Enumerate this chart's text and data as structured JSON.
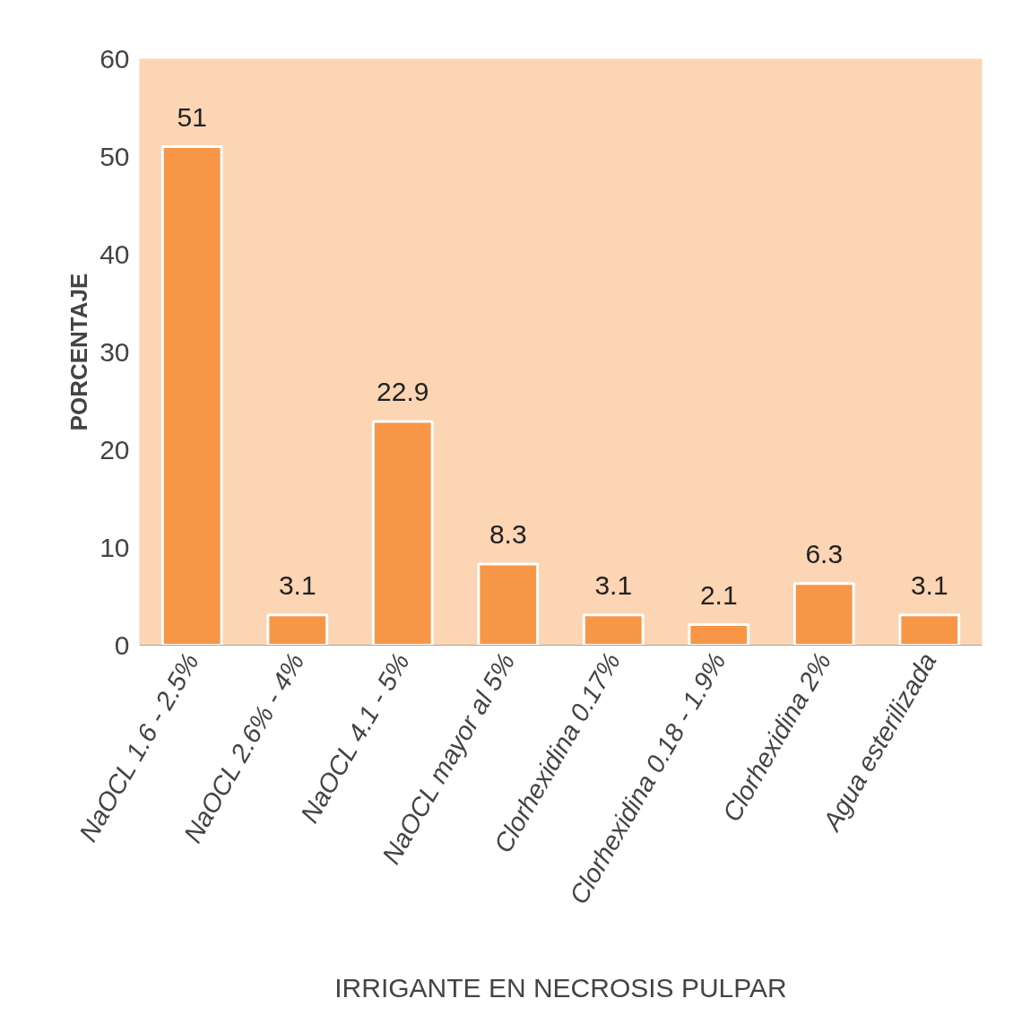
{
  "chart_data": {
    "type": "bar",
    "xlabel": "IRRIGANTE EN NECROSIS PULPAR",
    "ylabel": "PORCENTAJE",
    "categories": [
      "NaOCL 1.6 - 2.5%",
      "NaOCL 2.6% - 4%",
      "NaOCL 4.1 - 5%",
      "NaOCL mayor al 5%",
      "Clorhexidina 0.17%",
      "Clorhexidina 0.18 - 1.9%",
      "Clorhexidina 2%",
      "Agua esterilizada"
    ],
    "values": [
      51,
      3.1,
      22.9,
      8.3,
      3.1,
      2.1,
      6.3,
      3.1
    ],
    "color": "#f79646",
    "ylim": [
      0,
      60
    ],
    "yticks": [
      0,
      10,
      20,
      30,
      40,
      50,
      60
    ],
    "grid": false,
    "data_labels": true
  }
}
